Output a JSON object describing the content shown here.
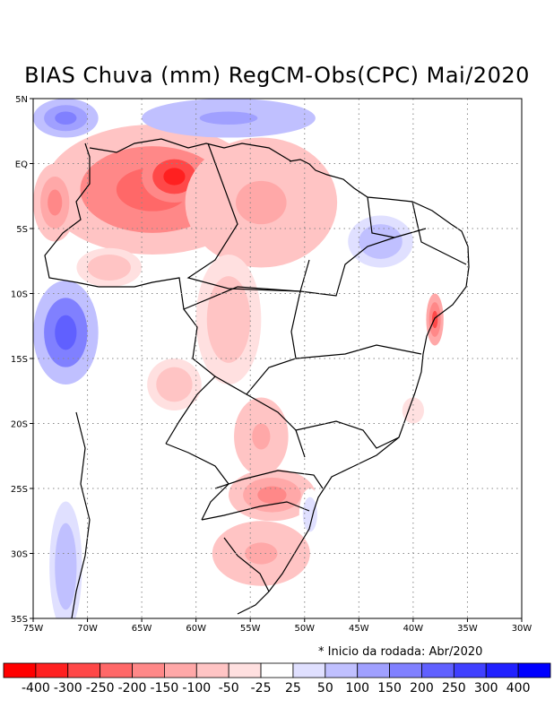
{
  "title": "BIAS Chuva (mm) RegCM-Obs(CPC) Mai/2020",
  "footnote": "* Inicio da rodada: Abr/2020",
  "map": {
    "lon_range": [
      -75,
      -30
    ],
    "lat_range": [
      -35,
      5
    ],
    "lon_ticks": [
      {
        "value": -75,
        "label": "75W"
      },
      {
        "value": -70,
        "label": "70W"
      },
      {
        "value": -65,
        "label": "65W"
      },
      {
        "value": -60,
        "label": "60W"
      },
      {
        "value": -55,
        "label": "55W"
      },
      {
        "value": -50,
        "label": "50W"
      },
      {
        "value": -45,
        "label": "45W"
      },
      {
        "value": -40,
        "label": "40W"
      },
      {
        "value": -35,
        "label": "35W"
      },
      {
        "value": -30,
        "label": "30W"
      }
    ],
    "lat_ticks": [
      {
        "value": 5,
        "label": "5N"
      },
      {
        "value": 0,
        "label": "EQ"
      },
      {
        "value": -5,
        "label": "5S"
      },
      {
        "value": -10,
        "label": "10S"
      },
      {
        "value": -15,
        "label": "15S"
      },
      {
        "value": -20,
        "label": "20S"
      },
      {
        "value": -25,
        "label": "25S"
      },
      {
        "value": -30,
        "label": "30S"
      },
      {
        "value": -35,
        "label": "35S"
      }
    ],
    "bias_regions": [
      {
        "name": "amazon-north-dry",
        "lon": -64,
        "lat": -2,
        "rx": 10,
        "ry": 5,
        "bias": -250
      },
      {
        "name": "amazon-core-dry",
        "lon": -62,
        "lat": -1,
        "rx": 3,
        "ry": 2,
        "bias": -400
      },
      {
        "name": "para-dry",
        "lon": -54,
        "lat": -3,
        "rx": 7,
        "ry": 5,
        "bias": -150
      },
      {
        "name": "amazon-west-dry",
        "lon": -73,
        "lat": -3,
        "rx": 2,
        "ry": 3,
        "bias": -200
      },
      {
        "name": "acre-dry",
        "lon": -68,
        "lat": -8,
        "rx": 3,
        "ry": 1.5,
        "bias": -100
      },
      {
        "name": "mato-grosso-dry",
        "lon": -57,
        "lat": -12,
        "rx": 3,
        "ry": 5,
        "bias": -100
      },
      {
        "name": "pantanal-dry",
        "lon": -62,
        "lat": -17,
        "rx": 2.5,
        "ry": 2,
        "bias": -100
      },
      {
        "name": "ms-dry",
        "lon": -54,
        "lat": -21,
        "rx": 2.5,
        "ry": 3,
        "bias": -150
      },
      {
        "name": "parana-dry",
        "lon": -53,
        "lat": -25.5,
        "rx": 4,
        "ry": 2,
        "bias": -200
      },
      {
        "name": "rs-dry",
        "lon": -54,
        "lat": -30,
        "rx": 4.5,
        "ry": 2.5,
        "bias": -150
      },
      {
        "name": "bahia-coast-dry",
        "lon": -38,
        "lat": -12,
        "rx": 0.8,
        "ry": 2,
        "bias": -300
      },
      {
        "name": "espirito-santo-dry",
        "lon": -40,
        "lat": -19,
        "rx": 1.5,
        "ry": 1.5,
        "bias": -50
      },
      {
        "name": "guianas-wet",
        "lon": -57,
        "lat": 3.5,
        "rx": 8,
        "ry": 1.5,
        "bias": 150
      },
      {
        "name": "colombia-wet",
        "lon": -72,
        "lat": 3.5,
        "rx": 3,
        "ry": 1.5,
        "bias": 200
      },
      {
        "name": "peru-bolivia-wet",
        "lon": -72,
        "lat": -13,
        "rx": 3,
        "ry": 4,
        "bias": 250
      },
      {
        "name": "chile-coast-wet",
        "lon": -72,
        "lat": -31,
        "rx": 1.5,
        "ry": 5,
        "bias": 100
      },
      {
        "name": "piaui-wet",
        "lon": -43,
        "lat": -6,
        "rx": 3,
        "ry": 2,
        "bias": 100
      },
      {
        "name": "santa-catarina-wet",
        "lon": -49.5,
        "lat": -27,
        "rx": 1,
        "ry": 2,
        "bias": 50
      }
    ]
  },
  "colorbar": {
    "labels": [
      "-400",
      "-300",
      "-250",
      "-200",
      "-150",
      "-100",
      "-50",
      "-25",
      "25",
      "50",
      "100",
      "150",
      "200",
      "250",
      "300",
      "400"
    ],
    "colors": [
      "#ff0000",
      "#ff2020",
      "#ff4848",
      "#ff6868",
      "#ff8888",
      "#ffa8a8",
      "#ffc4c4",
      "#ffe0e0",
      "#ffffff",
      "#e0e0ff",
      "#c0c0ff",
      "#a0a0ff",
      "#8080ff",
      "#6060ff",
      "#4040ff",
      "#2020ff",
      "#0000ff"
    ]
  }
}
